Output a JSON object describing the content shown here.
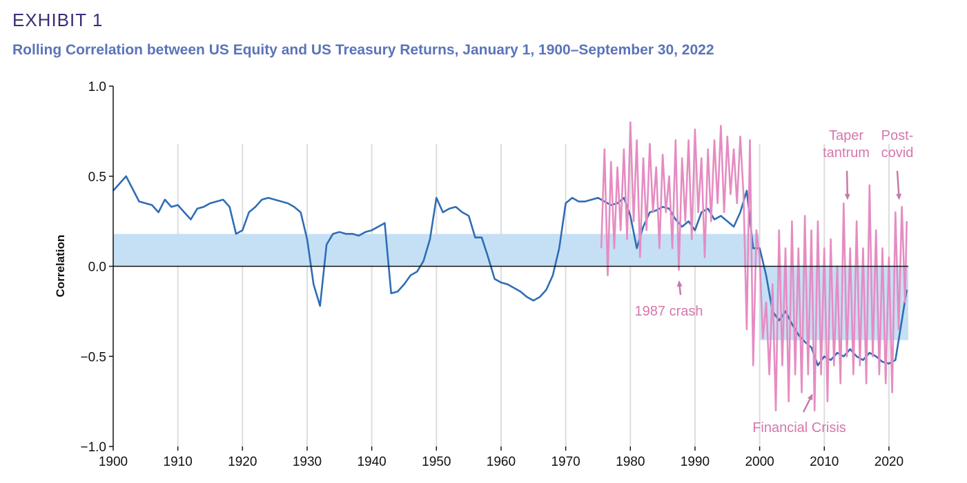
{
  "header": {
    "exhibit": "EXHIBIT 1",
    "subtitle": "Rolling Correlation between US Equity and US Treasury Returns, January 1, 1900–September 30, 2022"
  },
  "colors": {
    "equity_line": "#2f6db4",
    "high_freq_line": "#e58cc2",
    "band_fill": "#c5e0f5",
    "annotation": "#d676ab",
    "axis": "#111111",
    "grid": "#dddddd"
  },
  "chart_data": {
    "type": "line",
    "title": "",
    "xlabel": "",
    "ylabel": "Correlation",
    "xlim": [
      1900,
      2023
    ],
    "ylim": [
      -1.0,
      1.0
    ],
    "x_ticks": [
      1900,
      1910,
      1920,
      1930,
      1940,
      1950,
      1960,
      1970,
      1980,
      1990,
      2000,
      2010,
      2020
    ],
    "y_ticks": [
      {
        "value": 1.0,
        "label": "1.0"
      },
      {
        "value": 0.5,
        "label": "0.5"
      },
      {
        "value": 0.0,
        "label": "0.0"
      },
      {
        "value": -0.5,
        "label": "−0.5"
      },
      {
        "value": -1.0,
        "label": "−1.0"
      }
    ],
    "grid": "vertical",
    "average_bands": [
      {
        "x": [
          1900,
          2000
        ],
        "y": [
          0,
          0.18
        ]
      },
      {
        "x": [
          2000,
          2023
        ],
        "y": [
          -0.41,
          0
        ]
      }
    ],
    "series": [
      {
        "color": "#2f6db4",
        "x": [
          1900,
          1901,
          1902,
          1903,
          1904,
          1905,
          1906,
          1907,
          1908,
          1909,
          1910,
          1911,
          1912,
          1913,
          1914,
          1915,
          1916,
          1917,
          1918,
          1919,
          1920,
          1921,
          1922,
          1923,
          1924,
          1925,
          1926,
          1927,
          1928,
          1929,
          1930,
          1931,
          1932,
          1933,
          1934,
          1935,
          1936,
          1937,
          1938,
          1939,
          1940,
          1941,
          1942,
          1943,
          1944,
          1945,
          1946,
          1947,
          1948,
          1949,
          1950,
          1951,
          1952,
          1953,
          1954,
          1955,
          1956,
          1957,
          1958,
          1959,
          1960,
          1961,
          1962,
          1963,
          1964,
          1965,
          1966,
          1967,
          1968,
          1969,
          1970,
          1971,
          1972,
          1973,
          1974,
          1975,
          1976,
          1977,
          1978,
          1979,
          1980,
          1981,
          1982,
          1983,
          1984,
          1985,
          1986,
          1987,
          1988,
          1989,
          1990,
          1991,
          1992,
          1993,
          1994,
          1995,
          1996,
          1997,
          1998,
          1999,
          2000,
          2001,
          2002,
          2003,
          2004,
          2005,
          2006,
          2007,
          2008,
          2009,
          2010,
          2011,
          2012,
          2013,
          2014,
          2015,
          2016,
          2017,
          2018,
          2019,
          2020,
          2021,
          2022,
          2022.75
        ],
        "values": [
          0.42,
          0.46,
          0.5,
          0.43,
          0.36,
          0.35,
          0.34,
          0.3,
          0.37,
          0.33,
          0.34,
          0.3,
          0.26,
          0.32,
          0.33,
          0.35,
          0.36,
          0.37,
          0.33,
          0.18,
          0.2,
          0.3,
          0.33,
          0.37,
          0.38,
          0.37,
          0.36,
          0.35,
          0.33,
          0.3,
          0.15,
          -0.1,
          -0.22,
          0.12,
          0.18,
          0.19,
          0.18,
          0.18,
          0.17,
          0.19,
          0.2,
          0.22,
          0.24,
          -0.15,
          -0.14,
          -0.1,
          -0.05,
          -0.03,
          0.03,
          0.15,
          0.38,
          0.3,
          0.32,
          0.33,
          0.3,
          0.28,
          0.16,
          0.16,
          0.05,
          -0.07,
          -0.09,
          -0.1,
          -0.12,
          -0.14,
          -0.17,
          -0.19,
          -0.17,
          -0.13,
          -0.05,
          0.1,
          0.35,
          0.38,
          0.36,
          0.36,
          0.37,
          0.38,
          0.36,
          0.34,
          0.35,
          0.38,
          0.28,
          0.1,
          0.22,
          0.3,
          0.31,
          0.33,
          0.32,
          0.26,
          0.22,
          0.25,
          0.2,
          0.3,
          0.32,
          0.26,
          0.28,
          0.25,
          0.22,
          0.3,
          0.42,
          0.1,
          0.1,
          -0.05,
          -0.25,
          -0.3,
          -0.25,
          -0.32,
          -0.38,
          -0.42,
          -0.45,
          -0.55,
          -0.5,
          -0.52,
          -0.48,
          -0.5,
          -0.46,
          -0.5,
          -0.52,
          -0.48,
          -0.5,
          -0.53,
          -0.54,
          -0.52,
          -0.3,
          -0.13
        ]
      },
      {
        "color": "#e58cc2",
        "x": [
          1975.5,
          1976,
          1976.5,
          1977,
          1977.5,
          1978,
          1978.5,
          1979,
          1979.5,
          1980,
          1980.5,
          1981,
          1981.5,
          1982,
          1982.5,
          1983,
          1983.5,
          1984,
          1984.5,
          1985,
          1985.5,
          1986,
          1986.5,
          1987,
          1987.5,
          1988,
          1988.5,
          1989,
          1989.5,
          1990,
          1990.5,
          1991,
          1991.5,
          1992,
          1992.5,
          1993,
          1993.5,
          1994,
          1994.5,
          1995,
          1995.5,
          1996,
          1996.5,
          1997,
          1997.5,
          1998,
          1998.5,
          1999,
          1999.5,
          2000,
          2000.5,
          2001,
          2001.5,
          2002,
          2002.5,
          2003,
          2003.5,
          2004,
          2004.5,
          2005,
          2005.5,
          2006,
          2006.5,
          2007,
          2007.5,
          2008,
          2008.5,
          2009,
          2009.5,
          2010,
          2010.5,
          2011,
          2011.5,
          2012,
          2012.5,
          2013,
          2013.5,
          2014,
          2014.5,
          2015,
          2015.5,
          2016,
          2016.5,
          2017,
          2017.5,
          2018,
          2018.5,
          2019,
          2019.5,
          2020,
          2020.5,
          2021,
          2021.5,
          2022,
          2022.5,
          2022.75
        ],
        "values": [
          0.1,
          0.65,
          -0.05,
          0.58,
          0.1,
          0.55,
          0.2,
          0.65,
          0.15,
          0.8,
          0.25,
          0.7,
          0.05,
          0.6,
          0.2,
          0.68,
          0.3,
          0.55,
          0.1,
          0.62,
          0.3,
          0.5,
          0.1,
          0.7,
          -0.02,
          0.6,
          0.25,
          0.7,
          0.15,
          0.76,
          0.3,
          0.6,
          0.05,
          0.65,
          0.25,
          0.7,
          0.35,
          0.78,
          0.3,
          0.72,
          0.4,
          0.65,
          0.35,
          0.72,
          0.4,
          -0.35,
          0.7,
          -0.55,
          0.2,
          0.05,
          -0.4,
          -0.2,
          -0.6,
          -0.1,
          -0.8,
          0.2,
          -0.55,
          0.1,
          -0.75,
          0.25,
          -0.6,
          0.1,
          -0.7,
          0.28,
          -0.6,
          0.2,
          -0.8,
          0.25,
          -0.6,
          0.1,
          -0.75,
          0.15,
          -0.55,
          0.0,
          -0.65,
          0.35,
          -0.5,
          0.1,
          -0.6,
          0.25,
          -0.55,
          0.1,
          -0.65,
          0.45,
          -0.5,
          0.2,
          -0.6,
          0.1,
          -0.65,
          0.05,
          -0.7,
          0.3,
          -0.35,
          0.33,
          -0.2,
          0.25
        ]
      }
    ],
    "annotations": [
      {
        "text": "1987 crash",
        "target_x": 1987.5,
        "target_y": -0.07
      },
      {
        "text": "Financial Crisis",
        "target_x": 2008.3,
        "target_y": -0.7
      },
      {
        "text": "Taper tantrum",
        "target_x": 2013.6,
        "target_y": 0.36
      },
      {
        "text": "Post-covid",
        "target_x": 2021.6,
        "target_y": 0.36
      }
    ]
  }
}
